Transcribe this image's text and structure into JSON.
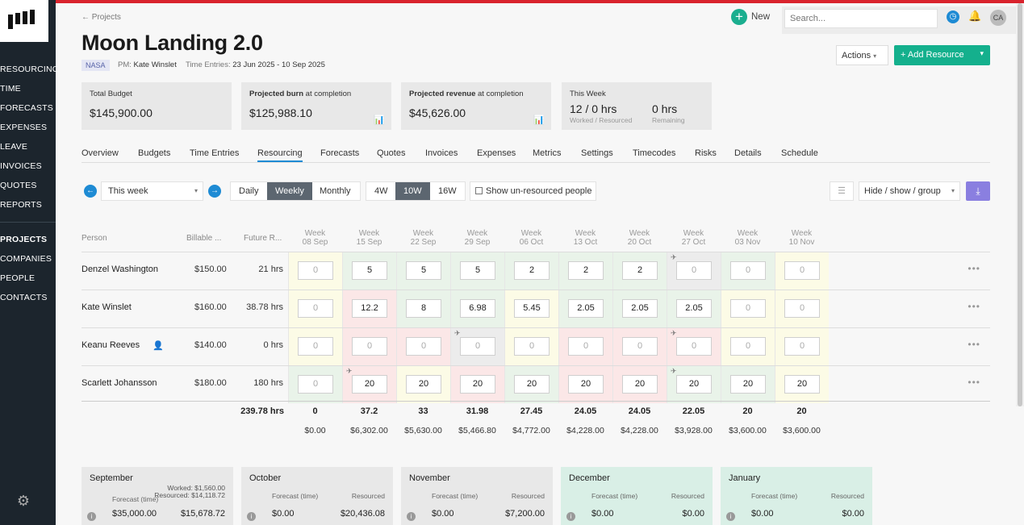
{
  "sidebar": {
    "items": [
      "RESOURCING",
      "TIME",
      "FORECASTS",
      "EXPENSES",
      "LEAVE",
      "INVOICES",
      "QUOTES",
      "REPORTS"
    ],
    "items2": [
      "PROJECTS",
      "COMPANIES",
      "PEOPLE",
      "CONTACTS"
    ]
  },
  "header": {
    "back": "← Projects",
    "title": "Moon Landing 2.0",
    "client": "NASA",
    "pm_label": "PM:",
    "pm": "Kate Winslet",
    "te_label": "Time Entries:",
    "te": "23 Jun 2025 - 10 Sep 2025",
    "new_label": "New",
    "search_placeholder": "Search...",
    "avatar": "CA",
    "actions_label": "Actions",
    "add_resource_label": "+ Add Resource"
  },
  "cards": {
    "budget_label": "Total Budget",
    "budget": "$145,900.00",
    "burn_label_b": "Projected burn",
    "burn_label": " at completion",
    "burn": "$125,988.10",
    "rev_label_b": "Projected revenue",
    "rev_label": " at completion",
    "rev": "$45,626.00",
    "week_label": "This Week",
    "week_hrs": "12 / 0 hrs",
    "week_sub": "Worked / Resourced",
    "rem_hrs": "0 hrs",
    "rem_sub": "Remaining"
  },
  "tabs": [
    "Overview",
    "Budgets",
    "Time Entries",
    "Resourcing",
    "Forecasts",
    "Quotes",
    "Invoices",
    "Expenses",
    "Metrics",
    "Settings",
    "Timecodes",
    "Risks",
    "Details",
    "Schedule"
  ],
  "controls": {
    "period": "This week",
    "daily": "Daily",
    "weekly": "Weekly",
    "monthly": "Monthly",
    "w4": "4W",
    "w10": "10W",
    "w16": "16W",
    "show_unresourced": "Show un-resourced people",
    "hide_show": "Hide / show / group"
  },
  "grid": {
    "col_person": "Person",
    "col_billable": "Billable ...",
    "col_future": "Future R...",
    "weeks": [
      [
        "Week",
        "08 Sep"
      ],
      [
        "Week",
        "15 Sep"
      ],
      [
        "Week",
        "22 Sep"
      ],
      [
        "Week",
        "29 Sep"
      ],
      [
        "Week",
        "06 Oct"
      ],
      [
        "Week",
        "13 Oct"
      ],
      [
        "Week",
        "20 Oct"
      ],
      [
        "Week",
        "27 Oct"
      ],
      [
        "Week",
        "03 Nov"
      ],
      [
        "Week",
        "10 Nov"
      ]
    ],
    "rows": [
      {
        "name": "Denzel Washington",
        "rate": "$150.00",
        "future": "21 hrs",
        "vals": [
          "0",
          "5",
          "5",
          "5",
          "2",
          "2",
          "2",
          "0",
          "0",
          "0"
        ]
      },
      {
        "name": "Kate Winslet",
        "rate": "$160.00",
        "future": "38.78 hrs",
        "vals": [
          "0",
          "12.2",
          "8",
          "6.98",
          "5.45",
          "2.05",
          "2.05",
          "2.05",
          "0",
          "0"
        ]
      },
      {
        "name": "Keanu Reeves",
        "rate": "$140.00",
        "future": "0 hrs",
        "vals": [
          "0",
          "0",
          "0",
          "0",
          "0",
          "0",
          "0",
          "0",
          "0",
          "0"
        ]
      },
      {
        "name": "Scarlett Johansson",
        "rate": "$180.00",
        "future": "180 hrs",
        "vals": [
          "0",
          "20",
          "20",
          "20",
          "20",
          "20",
          "20",
          "20",
          "20",
          "20"
        ]
      }
    ],
    "total_future": "239.78 hrs",
    "totals": [
      "0",
      "37.2",
      "33",
      "31.98",
      "27.45",
      "24.05",
      "24.05",
      "22.05",
      "20",
      "20"
    ],
    "money": [
      "$0.00",
      "$6,302.00",
      "$5,630.00",
      "$5,466.80",
      "$4,772.00",
      "$4,228.00",
      "$4,228.00",
      "$3,928.00",
      "$3,600.00",
      "$3,600.00"
    ]
  },
  "months": [
    {
      "name": "September",
      "forecast_label": "Forecast (time)",
      "resourced_label": "Resourced",
      "forecast": "$35,000.00",
      "resourced": "$15,678.72",
      "worked": "Worked: $1,560.00",
      "resourced_extra": "Resourced: $14,118.72"
    },
    {
      "name": "October",
      "forecast_label": "Forecast (time)",
      "resourced_label": "Resourced",
      "forecast": "$0.00",
      "resourced": "$20,436.08"
    },
    {
      "name": "November",
      "forecast_label": "Forecast (time)",
      "resourced_label": "Resourced",
      "forecast": "$0.00",
      "resourced": "$7,200.00"
    },
    {
      "name": "December",
      "forecast_label": "Forecast (time)",
      "resourced_label": "Resourced",
      "forecast": "$0.00",
      "resourced": "$0.00"
    },
    {
      "name": "January",
      "forecast_label": "Forecast (time)",
      "resourced_label": "Resourced",
      "forecast": "$0.00",
      "resourced": "$0.00"
    }
  ]
}
